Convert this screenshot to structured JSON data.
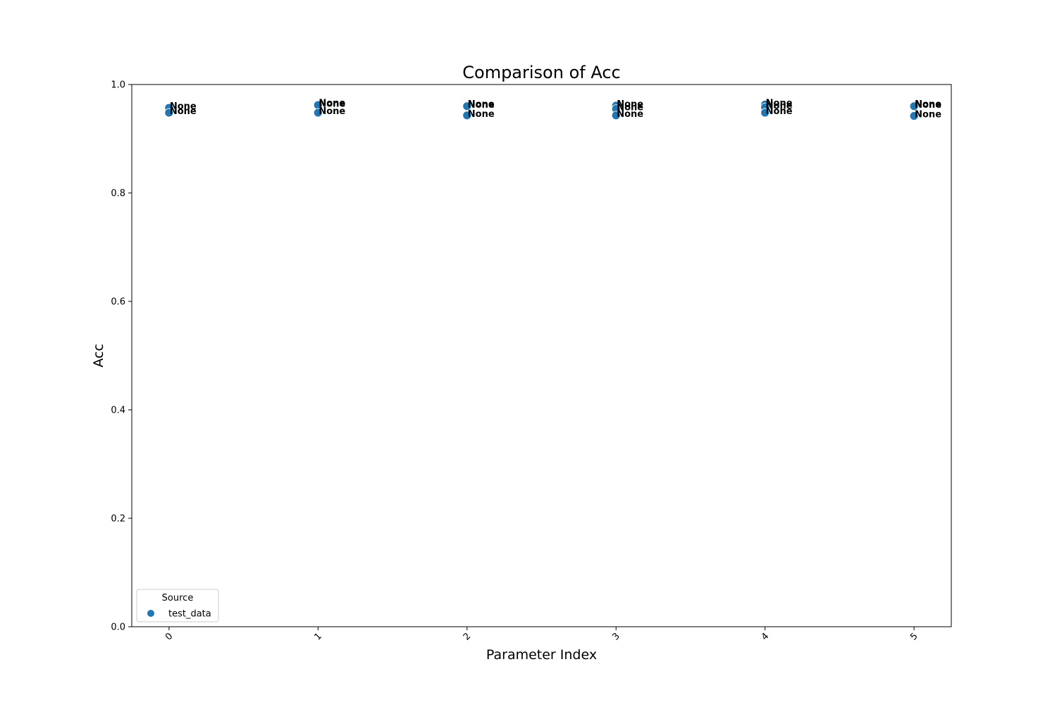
{
  "chart_data": {
    "type": "scatter",
    "title": "Comparison of Acc",
    "xlabel": "Parameter Index",
    "ylabel": "Acc",
    "xlim": [
      -0.25,
      5.25
    ],
    "ylim": [
      0.0,
      1.0
    ],
    "xticks": [
      0,
      1,
      2,
      3,
      4,
      5
    ],
    "xtick_labels": [
      "0",
      "1",
      "2",
      "3",
      "4",
      "5"
    ],
    "yticks": [
      0.0,
      0.2,
      0.4,
      0.6,
      0.8,
      1.0
    ],
    "ytick_labels": [
      "0.0",
      "0.2",
      "0.4",
      "0.6",
      "0.8",
      "1.0"
    ],
    "grid": false,
    "legend": {
      "title": "Source",
      "location": "lower-left",
      "entries": [
        {
          "label": "test_data",
          "color": "#1f77b4"
        }
      ]
    },
    "series": [
      {
        "name": "test_data",
        "color": "#1f77b4",
        "points": [
          {
            "x": 0,
            "y": 0.957,
            "label": "None"
          },
          {
            "x": 0,
            "y": 0.948,
            "label": "None"
          },
          {
            "x": 1,
            "y": 0.963,
            "label": "None"
          },
          {
            "x": 1,
            "y": 0.962,
            "label": "None"
          },
          {
            "x": 1,
            "y": 0.948,
            "label": "None"
          },
          {
            "x": 2,
            "y": 0.961,
            "label": "None"
          },
          {
            "x": 2,
            "y": 0.96,
            "label": "None"
          },
          {
            "x": 2,
            "y": 0.943,
            "label": "None"
          },
          {
            "x": 3,
            "y": 0.961,
            "label": "None"
          },
          {
            "x": 3,
            "y": 0.955,
            "label": "None"
          },
          {
            "x": 3,
            "y": 0.943,
            "label": "None"
          },
          {
            "x": 4,
            "y": 0.963,
            "label": "None"
          },
          {
            "x": 4,
            "y": 0.958,
            "label": "None"
          },
          {
            "x": 4,
            "y": 0.948,
            "label": "None"
          },
          {
            "x": 5,
            "y": 0.961,
            "label": "None"
          },
          {
            "x": 5,
            "y": 0.96,
            "label": "None"
          },
          {
            "x": 5,
            "y": 0.942,
            "label": "None"
          }
        ]
      }
    ]
  }
}
